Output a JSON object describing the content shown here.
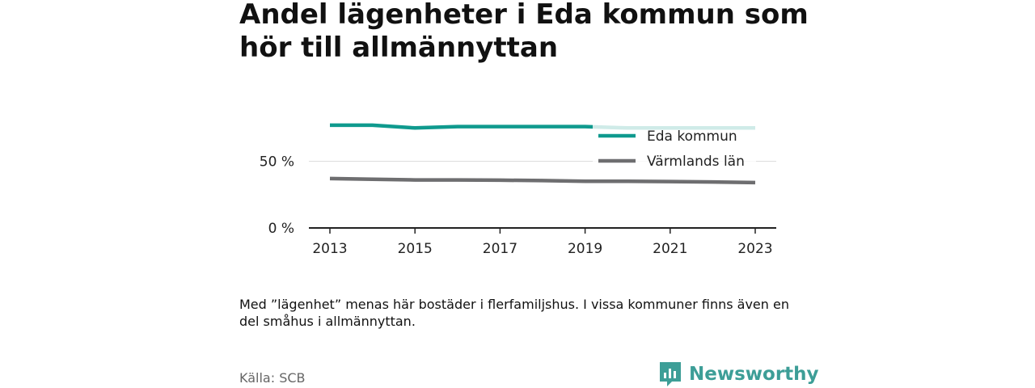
{
  "title": "Andel lägenheter i Eda kommun som hör till allmännyttan",
  "note": "Med ”lägenhet” menas här bostäder i flerfamiljshus. I vissa kommuner finns även en del småhus i allmännyttan.",
  "source": "Källa: SCB",
  "brand": {
    "name": "Newsworthy",
    "color": "#3d9e97",
    "icon": "newsworthy-logo-icon"
  },
  "chart_data": {
    "type": "line",
    "x": [
      2013,
      2014,
      2015,
      2016,
      2017,
      2018,
      2019,
      2020,
      2021,
      2022,
      2023
    ],
    "x_ticks": [
      "2013",
      "2015",
      "2017",
      "2019",
      "2021",
      "2023"
    ],
    "y_ticks": [
      "0 %",
      "50 %"
    ],
    "ylim": [
      0,
      100
    ],
    "grid": true,
    "legend_position": "top-right",
    "series": [
      {
        "name": "Eda kommun",
        "color": "#0f9a8e",
        "values": [
          77,
          77,
          75,
          76,
          76,
          76,
          76,
          75,
          75,
          75,
          75
        ]
      },
      {
        "name": "Värmlands län",
        "color": "#6e6e70",
        "values": [
          37,
          36.5,
          36,
          36,
          35.8,
          35.5,
          35,
          35,
          34.8,
          34.5,
          34
        ]
      }
    ]
  }
}
